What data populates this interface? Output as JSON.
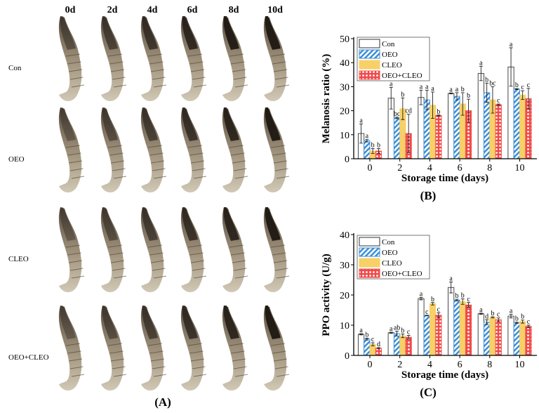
{
  "panel_a": {
    "label": "(A)",
    "columns": [
      "0d",
      "2d",
      "4d",
      "6d",
      "8d",
      "10d"
    ],
    "rows": [
      "Con",
      "OEO",
      "CLEO",
      "OEO+CLEO"
    ]
  },
  "colors": {
    "Con": "#ffffff",
    "OEO": "#3b8fd9",
    "CLEO": "#f7d067",
    "OEO+CLEO": "#f04a4a"
  },
  "chart_data": [
    {
      "panel_label": "(B)",
      "type": "bar",
      "xlabel": "Storage time (days)",
      "ylabel": "Melanosis ratio (%)",
      "ylim": [
        0,
        50
      ],
      "yticks": [
        0,
        10,
        20,
        30,
        40,
        50
      ],
      "categories": [
        "0",
        "2",
        "4",
        "6",
        "8",
        "10"
      ],
      "legend": "top-left",
      "series": [
        {
          "name": "Con",
          "values": [
            10.5,
            25.2,
            25.5,
            27.2,
            35.5,
            38.2
          ],
          "errors": [
            4,
            4.5,
            3,
            0.2,
            3,
            8
          ],
          "letters": [
            "a",
            "a",
            "a",
            "a",
            "a",
            "a"
          ]
        },
        {
          "name": "OEO",
          "values": [
            7.5,
            17,
            24.5,
            26,
            27.5,
            29
          ],
          "errors": [
            0.5,
            0.3,
            4,
            1.5,
            4,
            0.2
          ],
          "letters": [
            "a",
            "bc",
            "a",
            "a",
            "b",
            "b"
          ]
        },
        {
          "name": "CLEO",
          "values": [
            3.2,
            20.8,
            22.3,
            22.8,
            24.5,
            26.5
          ],
          "errors": [
            1,
            4.5,
            5.5,
            4.7,
            5.5,
            1.8
          ],
          "letters": [
            "b",
            "b",
            "a",
            "b",
            "bc",
            "c"
          ]
        },
        {
          "name": "OEO+CLEO",
          "values": [
            3.2,
            10.5,
            18,
            20,
            22.5,
            25
          ],
          "errors": [
            1,
            8,
            0.2,
            4.8,
            0.3,
            4.3
          ],
          "letters": [
            "b",
            "cd",
            "b",
            "b",
            "c",
            "c"
          ]
        }
      ]
    },
    {
      "panel_label": "(C)",
      "type": "bar",
      "xlabel": "Storage time (days)",
      "ylabel": "PPO activity (U/g)",
      "ylim": [
        0,
        40
      ],
      "yticks": [
        0,
        10,
        20,
        30,
        40
      ],
      "categories": [
        "0",
        "2",
        "4",
        "6",
        "8",
        "10"
      ],
      "legend": "top-left",
      "series": [
        {
          "name": "Con",
          "values": [
            7,
            7.5,
            18.8,
            22.5,
            13.8,
            13
          ],
          "errors": [
            0.2,
            0.2,
            0.4,
            1.8,
            0.2,
            0.6
          ],
          "letters": [
            "a",
            "a",
            "a",
            "a",
            "a",
            "a"
          ]
        },
        {
          "name": "OEO",
          "values": [
            5.4,
            7.2,
            13.2,
            18.3,
            11,
            10.8
          ],
          "errors": [
            0.3,
            0.8,
            0.1,
            0.3,
            0.8,
            0.2
          ],
          "letters": [
            "b",
            "ab",
            "c",
            "b",
            "d",
            "b"
          ]
        },
        {
          "name": "CLEO",
          "values": [
            3.7,
            6.5,
            17.1,
            17.8,
            12.6,
            11.2
          ],
          "errors": [
            0.5,
            0.6,
            0.4,
            0.9,
            0.2,
            0.5
          ],
          "letters": [
            "c",
            "b",
            "b",
            "b",
            "b",
            "b"
          ]
        },
        {
          "name": "OEO+CLEO",
          "values": [
            2.4,
            6,
            13.3,
            16.7,
            11.8,
            9.6
          ],
          "errors": [
            0.2,
            0.6,
            0.8,
            0.8,
            0.6,
            0.4
          ],
          "letters": [
            "d",
            "c",
            "c",
            "c",
            "c",
            "c"
          ]
        }
      ]
    }
  ]
}
